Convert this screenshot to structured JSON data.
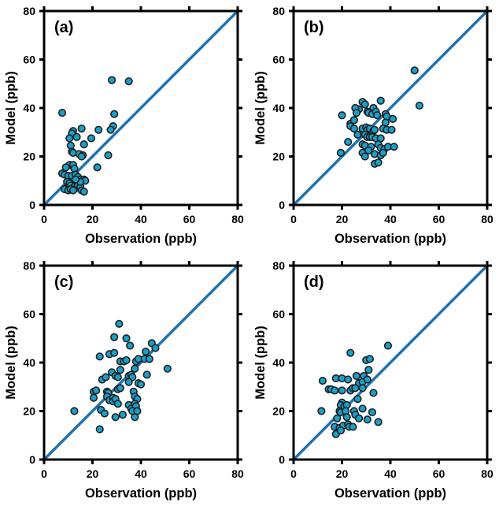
{
  "figure": {
    "background": "#ffffff",
    "xlabel": "Observation (ppb)",
    "ylabel": "Model (ppb)"
  },
  "style": {
    "marker_fill": "#18a0ca",
    "marker_edge": "#1f1f1f",
    "identity_line_color": "#1f72b2",
    "frame_color": "#000000",
    "marker_radius": 4.3,
    "line_width": 3.5,
    "frame_width": 3
  },
  "chart_data": [
    {
      "type": "scatter",
      "panel_label": "(a)",
      "xlabel": "Observation (ppb)",
      "ylabel": "Model (ppb)",
      "xlim": [
        0,
        80
      ],
      "ylim": [
        0,
        80
      ],
      "xticks": [
        0,
        20,
        40,
        60,
        80
      ],
      "yticks": [
        0,
        20,
        40,
        60,
        80
      ],
      "identity_line": true,
      "grid": false,
      "points": [
        [
          7.5,
          38
        ],
        [
          28,
          51.5
        ],
        [
          35,
          51
        ],
        [
          29,
          37.5
        ],
        [
          28.5,
          32.5
        ],
        [
          27.5,
          31
        ],
        [
          22.5,
          31
        ],
        [
          15.5,
          31.5
        ],
        [
          12,
          30.5
        ],
        [
          11.5,
          29.5
        ],
        [
          13.5,
          28
        ],
        [
          10.5,
          27.5
        ],
        [
          19.5,
          27.5
        ],
        [
          16.5,
          25
        ],
        [
          11,
          24.5
        ],
        [
          11.5,
          22
        ],
        [
          12,
          21.5
        ],
        [
          14.5,
          21
        ],
        [
          16,
          20.5
        ],
        [
          26.5,
          20.5
        ],
        [
          15.5,
          20
        ],
        [
          10.5,
          16.5
        ],
        [
          12,
          16.5
        ],
        [
          9,
          15.5
        ],
        [
          12.5,
          15
        ],
        [
          22,
          15.5
        ],
        [
          7.5,
          13
        ],
        [
          8.5,
          12.5
        ],
        [
          10,
          12
        ],
        [
          11.5,
          12
        ],
        [
          13,
          12.5
        ],
        [
          14,
          11.5
        ],
        [
          15,
          10.5
        ],
        [
          16.5,
          10.5
        ],
        [
          17,
          10
        ],
        [
          9.5,
          9.5
        ],
        [
          10.5,
          9
        ],
        [
          11,
          8
        ],
        [
          12.5,
          7.5
        ],
        [
          13.5,
          7
        ],
        [
          14,
          8
        ],
        [
          15,
          7.5
        ],
        [
          8.5,
          6.5
        ],
        [
          10,
          6
        ],
        [
          11,
          6.5
        ],
        [
          12,
          6
        ],
        [
          15.5,
          6
        ],
        [
          16.5,
          5.5
        ],
        [
          15,
          9.5
        ],
        [
          13,
          10.5
        ]
      ]
    },
    {
      "type": "scatter",
      "panel_label": "(b)",
      "xlabel": "Observation (ppb)",
      "ylabel": "Model (ppb)",
      "xlim": [
        0,
        80
      ],
      "ylim": [
        0,
        80
      ],
      "xticks": [
        0,
        20,
        40,
        60,
        80
      ],
      "yticks": [
        0,
        20,
        40,
        60,
        80
      ],
      "identity_line": true,
      "grid": false,
      "points": [
        [
          50,
          55.5
        ],
        [
          52,
          41
        ],
        [
          36,
          43
        ],
        [
          28.5,
          42.5
        ],
        [
          27,
          39.5
        ],
        [
          25.5,
          40
        ],
        [
          26,
          38
        ],
        [
          29.5,
          41.5
        ],
        [
          30.5,
          38.5
        ],
        [
          31,
          38
        ],
        [
          33,
          40
        ],
        [
          32.5,
          37.5
        ],
        [
          34,
          38.5
        ],
        [
          34.5,
          37
        ],
        [
          38,
          37.5
        ],
        [
          38.5,
          36.5
        ],
        [
          41,
          35.5
        ],
        [
          38,
          34
        ],
        [
          20,
          37
        ],
        [
          23.5,
          33.5
        ],
        [
          25,
          35
        ],
        [
          23.5,
          32.5
        ],
        [
          25,
          31.5
        ],
        [
          28.5,
          31.5
        ],
        [
          30,
          32
        ],
        [
          30.5,
          31
        ],
        [
          31.5,
          31.5
        ],
        [
          33,
          30.5
        ],
        [
          33.5,
          31
        ],
        [
          37,
          31.5
        ],
        [
          38.5,
          31
        ],
        [
          40.5,
          31
        ],
        [
          26.5,
          29
        ],
        [
          29.5,
          29
        ],
        [
          30.5,
          28
        ],
        [
          31.5,
          28
        ],
        [
          32.5,
          28
        ],
        [
          34,
          27.5
        ],
        [
          36,
          27.5
        ],
        [
          22.5,
          26
        ],
        [
          28.5,
          25
        ],
        [
          29.5,
          24.5
        ],
        [
          32,
          24
        ],
        [
          35,
          25
        ],
        [
          36,
          23.5
        ],
        [
          37.5,
          23
        ],
        [
          39,
          24
        ],
        [
          41.5,
          24
        ],
        [
          19.5,
          21.5
        ],
        [
          28.5,
          21.5
        ],
        [
          29.5,
          20
        ],
        [
          31,
          22.5
        ],
        [
          33.5,
          21
        ],
        [
          36,
          20.5
        ],
        [
          37,
          21.5
        ],
        [
          33.5,
          17
        ],
        [
          35,
          17.5
        ]
      ]
    },
    {
      "type": "scatter",
      "panel_label": "(c)",
      "xlabel": "Observation (ppb)",
      "ylabel": "Model (ppb)",
      "xlim": [
        0,
        80
      ],
      "ylim": [
        0,
        80
      ],
      "xticks": [
        0,
        20,
        40,
        60,
        80
      ],
      "yticks": [
        0,
        20,
        40,
        60,
        80
      ],
      "identity_line": true,
      "grid": false,
      "points": [
        [
          31,
          56
        ],
        [
          29,
          50.5
        ],
        [
          34,
          50
        ],
        [
          35.5,
          47
        ],
        [
          44.5,
          48
        ],
        [
          46,
          46
        ],
        [
          23,
          42.5
        ],
        [
          27,
          43.5
        ],
        [
          29,
          44
        ],
        [
          31.5,
          40.5
        ],
        [
          33,
          40.5
        ],
        [
          34,
          41
        ],
        [
          38,
          40.5
        ],
        [
          39,
          41.5
        ],
        [
          41.5,
          41.5
        ],
        [
          42,
          44.5
        ],
        [
          43.5,
          41.5
        ],
        [
          28,
          36
        ],
        [
          29.5,
          34.5
        ],
        [
          31.5,
          37
        ],
        [
          37.5,
          37.5
        ],
        [
          51,
          37.5
        ],
        [
          24,
          33
        ],
        [
          25.5,
          34
        ],
        [
          30.5,
          34
        ],
        [
          35,
          34.5
        ],
        [
          36,
          35
        ],
        [
          36.5,
          34
        ],
        [
          42.5,
          35
        ],
        [
          35,
          32
        ],
        [
          39,
          31.5
        ],
        [
          40,
          31
        ],
        [
          20.5,
          28
        ],
        [
          21.5,
          28.5
        ],
        [
          26,
          28
        ],
        [
          26.5,
          27.5
        ],
        [
          30.5,
          29
        ],
        [
          31.5,
          29.5
        ],
        [
          37,
          28
        ],
        [
          20.5,
          25.5
        ],
        [
          26,
          26
        ],
        [
          27,
          24.5
        ],
        [
          28.5,
          25.5
        ],
        [
          28.5,
          24
        ],
        [
          29.5,
          25
        ],
        [
          37.5,
          26
        ],
        [
          38.5,
          25
        ],
        [
          30.5,
          23
        ],
        [
          35,
          22.5
        ],
        [
          36,
          21
        ],
        [
          37.5,
          23
        ],
        [
          38,
          22
        ],
        [
          12.5,
          20
        ],
        [
          23.5,
          20.5
        ],
        [
          36.5,
          20
        ],
        [
          38.5,
          20
        ],
        [
          25,
          19
        ],
        [
          29.5,
          17.5
        ],
        [
          32.5,
          18.5
        ],
        [
          37.5,
          17.5
        ],
        [
          23,
          12.5
        ]
      ]
    },
    {
      "type": "scatter",
      "panel_label": "(d)",
      "xlabel": "Observation (ppb)",
      "ylabel": "Model (ppb)",
      "xlim": [
        0,
        80
      ],
      "ylim": [
        0,
        80
      ],
      "xticks": [
        0,
        20,
        40,
        60,
        80
      ],
      "yticks": [
        0,
        20,
        40,
        60,
        80
      ],
      "identity_line": true,
      "grid": false,
      "points": [
        [
          39,
          47
        ],
        [
          23.5,
          44
        ],
        [
          30,
          41
        ],
        [
          31.5,
          41.5
        ],
        [
          31,
          37
        ],
        [
          12,
          32.5
        ],
        [
          17.5,
          33.5
        ],
        [
          20,
          33.5
        ],
        [
          22.5,
          33
        ],
        [
          26,
          34.5
        ],
        [
          29,
          34.5
        ],
        [
          27,
          31.5
        ],
        [
          28.5,
          32
        ],
        [
          30.5,
          33
        ],
        [
          14.5,
          29
        ],
        [
          15.5,
          29
        ],
        [
          17,
          28.5
        ],
        [
          20,
          28.5
        ],
        [
          23.5,
          28.5
        ],
        [
          24.5,
          29.5
        ],
        [
          25.5,
          29.5
        ],
        [
          28.5,
          29.5
        ],
        [
          33,
          27.5
        ],
        [
          26.5,
          25
        ],
        [
          20,
          23.5
        ],
        [
          19.5,
          22.5
        ],
        [
          21,
          22
        ],
        [
          22,
          22.5
        ],
        [
          11.5,
          20
        ],
        [
          19,
          20
        ],
        [
          19.5,
          19.5
        ],
        [
          21.5,
          20
        ],
        [
          25,
          20
        ],
        [
          28.5,
          21
        ],
        [
          32.5,
          19.5
        ],
        [
          25.5,
          18.5
        ],
        [
          18,
          17
        ],
        [
          22,
          17.5
        ],
        [
          27,
          17
        ],
        [
          30.5,
          16.5
        ],
        [
          35,
          15.5
        ],
        [
          17,
          13.5
        ],
        [
          19,
          13
        ],
        [
          20.5,
          14
        ],
        [
          22.5,
          14.5
        ],
        [
          23,
          13.5
        ],
        [
          24.5,
          13.5
        ],
        [
          17.5,
          10.5
        ],
        [
          19.5,
          12
        ]
      ]
    }
  ]
}
